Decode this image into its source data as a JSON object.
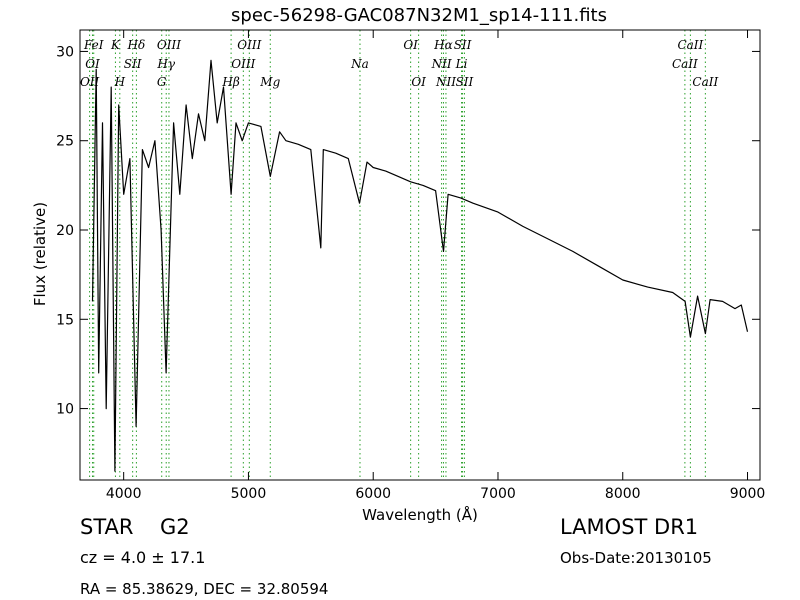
{
  "chart_data": {
    "type": "line",
    "title": "spec-56298-GAC087N32M1_sp14-111.fits",
    "xlabel": "Wavelength (Å)",
    "ylabel": "Flux (relative)",
    "xlim": [
      3650,
      9100
    ],
    "ylim": [
      6,
      31.2
    ],
    "xticks": [
      4000,
      5000,
      6000,
      7000,
      8000,
      9000
    ],
    "yticks": [
      10,
      15,
      20,
      25,
      30
    ],
    "grid": false,
    "line_color": "#000000",
    "marker_color": "#2ca02c",
    "spectrum": {
      "x": [
        3750,
        3780,
        3800,
        3830,
        3860,
        3900,
        3930,
        3960,
        4000,
        4050,
        4100,
        4150,
        4200,
        4250,
        4300,
        4340,
        4400,
        4450,
        4500,
        4550,
        4600,
        4650,
        4700,
        4750,
        4800,
        4861,
        4900,
        4950,
        5000,
        5100,
        5175,
        5250,
        5300,
        5400,
        5500,
        5580,
        5600,
        5700,
        5800,
        5890,
        5950,
        6000,
        6100,
        6200,
        6300,
        6400,
        6500,
        6563,
        6600,
        6700,
        6800,
        7000,
        7200,
        7400,
        7600,
        7800,
        8000,
        8200,
        8400,
        8500,
        8542,
        8600,
        8662,
        8700,
        8800,
        8900,
        8950,
        9000
      ],
      "y": [
        16,
        29,
        12,
        26,
        10,
        28,
        6.5,
        27,
        22,
        24,
        9,
        24.5,
        23.5,
        25,
        20,
        12,
        26,
        22,
        27,
        24,
        26.5,
        25,
        29.5,
        26,
        28,
        22,
        26,
        25,
        26,
        25.8,
        23,
        25.5,
        25,
        24.8,
        24.5,
        19,
        24.5,
        24.3,
        24,
        21.5,
        23.8,
        23.5,
        23.3,
        23,
        22.7,
        22.5,
        22.2,
        18.8,
        22,
        21.8,
        21.5,
        21,
        20.2,
        19.5,
        18.8,
        18,
        17.2,
        16.8,
        16.5,
        16,
        14,
        16.3,
        14.2,
        16.1,
        16,
        15.6,
        15.8,
        14.3
      ]
    },
    "lines": [
      {
        "name": "OI",
        "x": 3750,
        "row": 1
      },
      {
        "name": "FeI",
        "x": 3760,
        "row": 0
      },
      {
        "name": "OII",
        "x": 3727,
        "row": 2
      },
      {
        "name": "K",
        "x": 3934,
        "row": 0
      },
      {
        "name": "H",
        "x": 3969,
        "row": 2
      },
      {
        "name": "SII",
        "x": 4072,
        "row": 1
      },
      {
        "name": "Hδ",
        "x": 4102,
        "row": 0
      },
      {
        "name": "Hγ",
        "x": 4341,
        "row": 1
      },
      {
        "name": "G",
        "x": 4305,
        "row": 2
      },
      {
        "name": "OIII",
        "x": 4363,
        "row": 0
      },
      {
        "name": "Hβ",
        "x": 4861,
        "row": 2
      },
      {
        "name": "OIII",
        "x": 4959,
        "row": 1
      },
      {
        "name": "OIII",
        "x": 5007,
        "row": 0
      },
      {
        "name": "Mg",
        "x": 5175,
        "row": 2
      },
      {
        "name": "Na",
        "x": 5894,
        "row": 1
      },
      {
        "name": "OI",
        "x": 6300,
        "row": 0
      },
      {
        "name": "OI",
        "x": 6364,
        "row": 2
      },
      {
        "name": "NII",
        "x": 6548,
        "row": 1
      },
      {
        "name": "Hα",
        "x": 6563,
        "row": 0
      },
      {
        "name": "NII",
        "x": 6583,
        "row": 2
      },
      {
        "name": "Li",
        "x": 6708,
        "row": 1
      },
      {
        "name": "SII",
        "x": 6716,
        "row": 0
      },
      {
        "name": "SII",
        "x": 6731,
        "row": 2
      },
      {
        "name": "CaII",
        "x": 8498,
        "row": 1
      },
      {
        "name": "CaII",
        "x": 8542,
        "row": 0
      },
      {
        "name": "CaII",
        "x": 8662,
        "row": 2
      }
    ]
  },
  "info": {
    "class": "STAR",
    "subclass": "G2",
    "cz": "cz = 4.0 ± 17.1",
    "survey": "LAMOST DR1",
    "obs_date": "Obs-Date:20130105",
    "radec": "RA = 85.38629, DEC = 32.80594"
  }
}
